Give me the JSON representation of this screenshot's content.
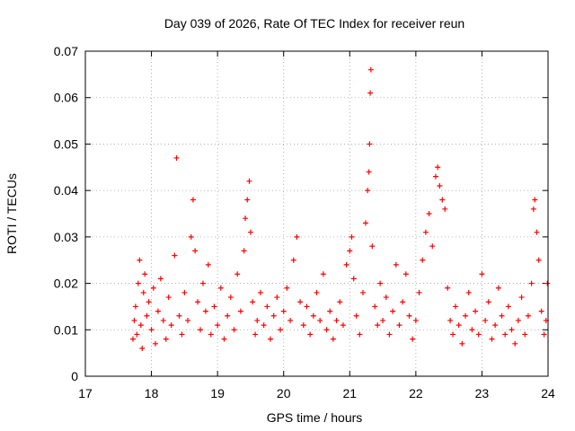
{
  "chart_data": {
    "type": "scatter",
    "title": "Day 039 of 2026, Rate Of TEC Index for receiver reun",
    "xlabel": "GPS time / hours",
    "ylabel": "ROTI / TECUs",
    "xlim": [
      17,
      24
    ],
    "ylim": [
      0,
      0.07
    ],
    "xticks": [
      17,
      18,
      19,
      20,
      21,
      22,
      23,
      24
    ],
    "xtick_labels": [
      "17",
      "18",
      "19",
      "20",
      "21",
      "22",
      "23",
      "24"
    ],
    "yticks": [
      0,
      0.01,
      0.02,
      0.03,
      0.04,
      0.05,
      0.06,
      0.07
    ],
    "ytick_labels": [
      "0",
      "0.01",
      "0.02",
      "0.03",
      "0.04",
      "0.05",
      "0.06",
      "0.07"
    ],
    "grid": true,
    "marker": "+",
    "series": [
      {
        "name": "ROTI",
        "color": "#ff0000",
        "points": [
          [
            17.72,
            0.008
          ],
          [
            17.74,
            0.012
          ],
          [
            17.76,
            0.015
          ],
          [
            17.78,
            0.009
          ],
          [
            17.8,
            0.02
          ],
          [
            17.82,
            0.025
          ],
          [
            17.84,
            0.011
          ],
          [
            17.86,
            0.006
          ],
          [
            17.88,
            0.018
          ],
          [
            17.9,
            0.022
          ],
          [
            17.93,
            0.013
          ],
          [
            17.96,
            0.016
          ],
          [
            18.0,
            0.01
          ],
          [
            18.03,
            0.019
          ],
          [
            18.06,
            0.007
          ],
          [
            18.1,
            0.014
          ],
          [
            18.14,
            0.021
          ],
          [
            18.18,
            0.012
          ],
          [
            18.22,
            0.008
          ],
          [
            18.26,
            0.017
          ],
          [
            18.3,
            0.011
          ],
          [
            18.35,
            0.026
          ],
          [
            18.38,
            0.047
          ],
          [
            18.42,
            0.013
          ],
          [
            18.46,
            0.009
          ],
          [
            18.5,
            0.018
          ],
          [
            18.55,
            0.012
          ],
          [
            18.6,
            0.03
          ],
          [
            18.63,
            0.038
          ],
          [
            18.66,
            0.027
          ],
          [
            18.7,
            0.016
          ],
          [
            18.74,
            0.01
          ],
          [
            18.78,
            0.02
          ],
          [
            18.82,
            0.014
          ],
          [
            18.86,
            0.024
          ],
          [
            18.9,
            0.009
          ],
          [
            18.95,
            0.015
          ],
          [
            19.0,
            0.011
          ],
          [
            19.05,
            0.019
          ],
          [
            19.1,
            0.008
          ],
          [
            19.15,
            0.013
          ],
          [
            19.2,
            0.017
          ],
          [
            19.25,
            0.01
          ],
          [
            19.3,
            0.022
          ],
          [
            19.35,
            0.014
          ],
          [
            19.4,
            0.027
          ],
          [
            19.42,
            0.034
          ],
          [
            19.45,
            0.038
          ],
          [
            19.48,
            0.042
          ],
          [
            19.5,
            0.031
          ],
          [
            19.53,
            0.016
          ],
          [
            19.57,
            0.009
          ],
          [
            19.6,
            0.012
          ],
          [
            19.65,
            0.018
          ],
          [
            19.7,
            0.011
          ],
          [
            19.75,
            0.015
          ],
          [
            19.8,
            0.008
          ],
          [
            19.85,
            0.013
          ],
          [
            19.9,
            0.017
          ],
          [
            19.95,
            0.01
          ],
          [
            20.0,
            0.014
          ],
          [
            20.05,
            0.019
          ],
          [
            20.1,
            0.012
          ],
          [
            20.15,
            0.025
          ],
          [
            20.2,
            0.03
          ],
          [
            20.25,
            0.016
          ],
          [
            20.3,
            0.011
          ],
          [
            20.35,
            0.015
          ],
          [
            20.4,
            0.009
          ],
          [
            20.45,
            0.013
          ],
          [
            20.5,
            0.018
          ],
          [
            20.55,
            0.012
          ],
          [
            20.6,
            0.022
          ],
          [
            20.65,
            0.01
          ],
          [
            20.7,
            0.014
          ],
          [
            20.75,
            0.008
          ],
          [
            20.8,
            0.012
          ],
          [
            20.85,
            0.016
          ],
          [
            20.9,
            0.011
          ],
          [
            20.95,
            0.024
          ],
          [
            21.0,
            0.027
          ],
          [
            21.03,
            0.03
          ],
          [
            21.06,
            0.021
          ],
          [
            21.1,
            0.013
          ],
          [
            21.15,
            0.009
          ],
          [
            21.2,
            0.018
          ],
          [
            21.24,
            0.033
          ],
          [
            21.27,
            0.04
          ],
          [
            21.29,
            0.044
          ],
          [
            21.3,
            0.05
          ],
          [
            21.31,
            0.061
          ],
          [
            21.32,
            0.066
          ],
          [
            21.34,
            0.028
          ],
          [
            21.38,
            0.015
          ],
          [
            21.42,
            0.011
          ],
          [
            21.46,
            0.02
          ],
          [
            21.5,
            0.012
          ],
          [
            21.55,
            0.017
          ],
          [
            21.6,
            0.009
          ],
          [
            21.65,
            0.014
          ],
          [
            21.7,
            0.024
          ],
          [
            21.75,
            0.011
          ],
          [
            21.8,
            0.016
          ],
          [
            21.85,
            0.022
          ],
          [
            21.9,
            0.013
          ],
          [
            21.95,
            0.008
          ],
          [
            22.0,
            0.012
          ],
          [
            22.05,
            0.018
          ],
          [
            22.1,
            0.025
          ],
          [
            22.15,
            0.031
          ],
          [
            22.2,
            0.035
          ],
          [
            22.25,
            0.028
          ],
          [
            22.3,
            0.043
          ],
          [
            22.33,
            0.045
          ],
          [
            22.36,
            0.041
          ],
          [
            22.4,
            0.038
          ],
          [
            22.44,
            0.036
          ],
          [
            22.48,
            0.019
          ],
          [
            22.52,
            0.012
          ],
          [
            22.56,
            0.009
          ],
          [
            22.6,
            0.015
          ],
          [
            22.65,
            0.011
          ],
          [
            22.7,
            0.007
          ],
          [
            22.75,
            0.013
          ],
          [
            22.8,
            0.018
          ],
          [
            22.85,
            0.01
          ],
          [
            22.9,
            0.014
          ],
          [
            22.95,
            0.009
          ],
          [
            23.0,
            0.022
          ],
          [
            23.05,
            0.012
          ],
          [
            23.1,
            0.016
          ],
          [
            23.15,
            0.008
          ],
          [
            23.2,
            0.011
          ],
          [
            23.25,
            0.019
          ],
          [
            23.3,
            0.013
          ],
          [
            23.35,
            0.009
          ],
          [
            23.4,
            0.015
          ],
          [
            23.45,
            0.01
          ],
          [
            23.5,
            0.007
          ],
          [
            23.55,
            0.012
          ],
          [
            23.6,
            0.017
          ],
          [
            23.65,
            0.009
          ],
          [
            23.7,
            0.013
          ],
          [
            23.75,
            0.02
          ],
          [
            23.78,
            0.036
          ],
          [
            23.8,
            0.038
          ],
          [
            23.83,
            0.031
          ],
          [
            23.86,
            0.025
          ],
          [
            23.9,
            0.014
          ],
          [
            23.94,
            0.009
          ],
          [
            23.97,
            0.012
          ],
          [
            23.99,
            0.02
          ]
        ]
      }
    ]
  }
}
